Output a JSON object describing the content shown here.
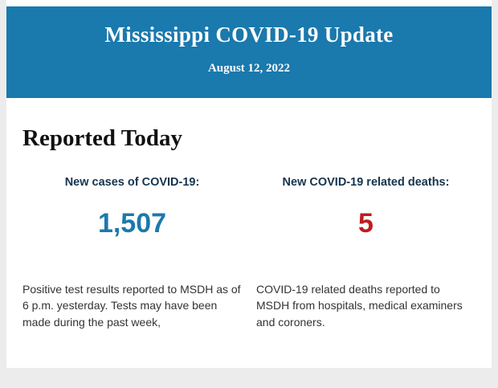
{
  "header": {
    "title": "Mississippi COVID-19 Update",
    "date": "August 12, 2022",
    "background_color": "#1a79ad"
  },
  "main": {
    "section_title": "Reported Today",
    "stats": [
      {
        "label": "New cases of COVID-19:",
        "value": "1,507",
        "value_color": "#1c79ad",
        "description": "Positive test results reported to MSDH as of 6 p.m. yesterday. Tests may have been made during the past week,"
      },
      {
        "label": "New COVID-19 related deaths:",
        "value": "5",
        "value_color": "#bf1c22",
        "description": "COVID-19 related deaths reported to MSDH from hospitals, medical examiners and coroners."
      }
    ]
  }
}
